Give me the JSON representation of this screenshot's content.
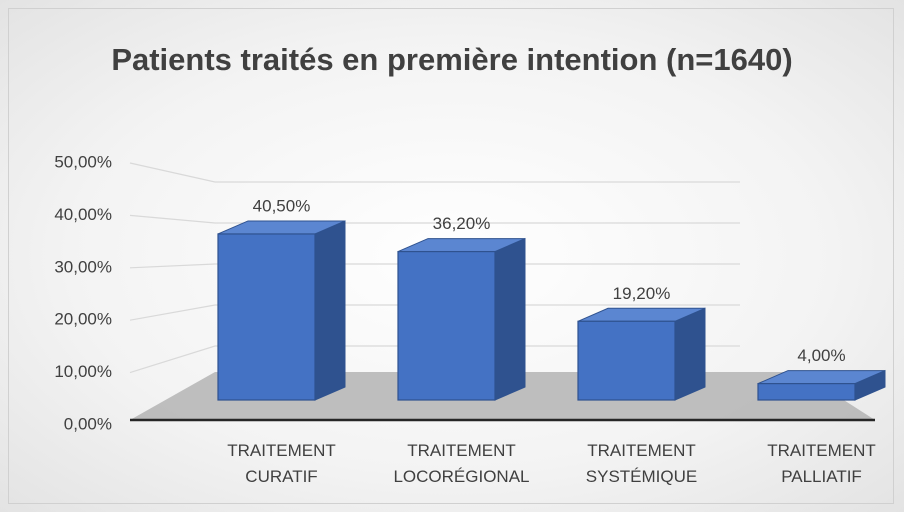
{
  "chart_data": {
    "type": "bar3d",
    "title": "Patients traités en première intention (n=1640)",
    "categories": [
      "TRAITEMENT CURATIF",
      "TRAITEMENT LOCORÉGIONAL",
      "TRAITEMENT SYSTÉMIQUE",
      "TRAITEMENT PALLIATIF"
    ],
    "values": [
      40.5,
      36.2,
      19.2,
      4.0
    ],
    "value_labels": [
      "40,50%",
      "36,20%",
      "19,20%",
      "4,00%"
    ],
    "color": "#4472c4",
    "ylim": [
      0,
      50
    ],
    "yticks": [
      {
        "value": 0,
        "label": "0,00%"
      },
      {
        "value": 10,
        "label": "10,00%"
      },
      {
        "value": 20,
        "label": "20,00%"
      },
      {
        "value": 30,
        "label": "30,00%"
      },
      {
        "value": 40,
        "label": "40,00%"
      },
      {
        "value": 50,
        "label": "50,00%"
      }
    ],
    "grid": true
  }
}
